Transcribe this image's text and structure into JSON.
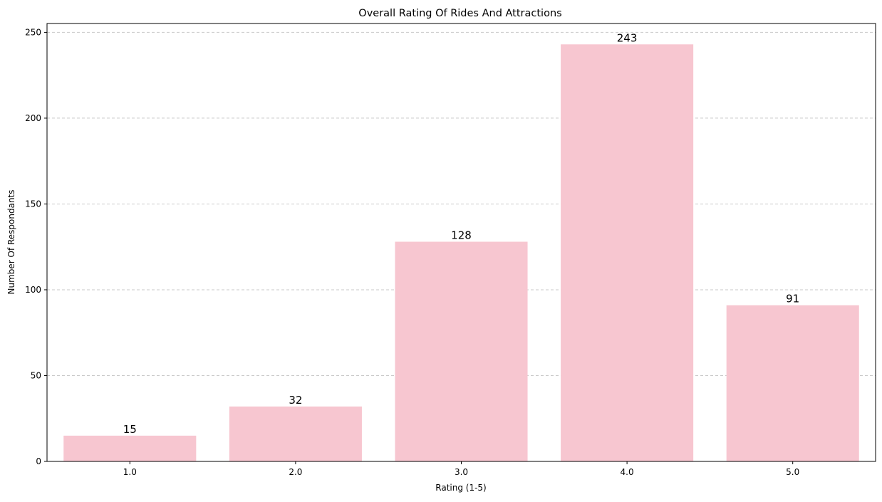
{
  "chart_data": {
    "type": "bar",
    "title": "Overall Rating Of Rides And Attractions",
    "xlabel": "Rating (1-5)",
    "ylabel": "Number Of Respondants",
    "categories": [
      "1.0",
      "2.0",
      "3.0",
      "4.0",
      "5.0"
    ],
    "values": [
      15,
      32,
      128,
      243,
      91
    ],
    "data_labels": [
      "15",
      "32",
      "128",
      "243",
      "91"
    ],
    "yticks": [
      0,
      50,
      100,
      150,
      200,
      250
    ],
    "ytick_labels": [
      "0",
      "50",
      "100",
      "150",
      "200",
      "250"
    ],
    "ylim": [
      0,
      255.15
    ],
    "grid": "y-dashed",
    "legend": "none",
    "colors": {
      "bar": "#f7c6d0",
      "grid": "#c8c8c8",
      "axis": "#000000"
    }
  }
}
